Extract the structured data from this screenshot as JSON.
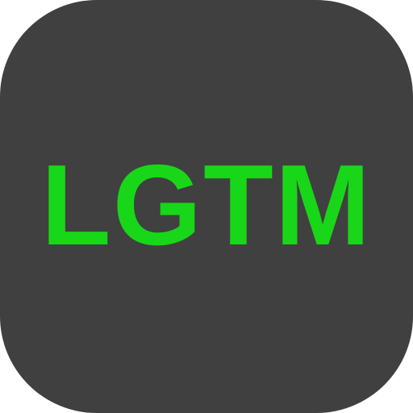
{
  "app_icon": {
    "label": "LGTM",
    "colors": {
      "background": "#404040",
      "text": "#18D718"
    }
  }
}
